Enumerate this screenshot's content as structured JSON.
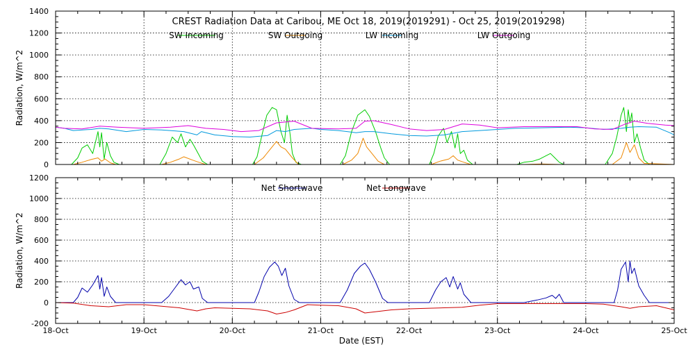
{
  "chart_data": [
    {
      "type": "line",
      "id": "top",
      "title": "CREST Radiation Data at Caribou, ME   Oct 18, 2019(2019291) - Oct 25, 2019(2019298)",
      "xlabel": "",
      "ylabel": "Radiation, W/m^2",
      "ylim": [
        0,
        1400
      ],
      "yticks": [
        0,
        200,
        400,
        600,
        800,
        1000,
        1200,
        1400
      ],
      "xlim": [
        0,
        7
      ],
      "xticks": [
        0,
        1,
        2,
        3,
        4,
        5,
        6,
        7
      ],
      "grid": true,
      "legend_position": "top",
      "series": [
        {
          "name": "SW Incoming",
          "color": "#00cc00",
          "x": [
            0,
            0.18,
            0.25,
            0.3,
            0.36,
            0.42,
            0.48,
            0.5,
            0.52,
            0.55,
            0.58,
            0.62,
            0.66,
            0.72,
            1.0,
            1.18,
            1.25,
            1.32,
            1.38,
            1.42,
            1.47,
            1.52,
            1.56,
            1.62,
            1.66,
            1.72,
            2.0,
            2.23,
            2.28,
            2.33,
            2.39,
            2.45,
            2.5,
            2.55,
            2.59,
            2.62,
            2.65,
            2.68,
            2.72,
            2.78,
            3.0,
            3.22,
            3.28,
            3.35,
            3.42,
            3.5,
            3.55,
            3.62,
            3.68,
            3.72,
            3.78,
            4.0,
            4.23,
            4.28,
            4.33,
            4.39,
            4.43,
            4.48,
            4.52,
            4.55,
            4.58,
            4.62,
            4.66,
            4.72,
            5.0,
            5.22,
            5.3,
            5.4,
            5.48,
            5.55,
            5.6,
            5.65,
            5.7,
            5.75,
            6.0,
            6.22,
            6.3,
            6.35,
            6.4,
            6.43,
            6.46,
            6.48,
            6.5,
            6.52,
            6.55,
            6.58,
            6.62,
            6.66,
            6.72,
            7.0
          ],
          "values": [
            0,
            0,
            60,
            150,
            180,
            100,
            300,
            160,
            290,
            50,
            200,
            80,
            20,
            0,
            0,
            0,
            100,
            250,
            200,
            280,
            160,
            230,
            180,
            90,
            30,
            0,
            0,
            0,
            70,
            250,
            450,
            520,
            500,
            300,
            200,
            450,
            300,
            100,
            20,
            0,
            0,
            0,
            80,
            300,
            450,
            500,
            440,
            300,
            150,
            60,
            0,
            0,
            0,
            100,
            260,
            330,
            200,
            300,
            150,
            280,
            100,
            130,
            40,
            0,
            0,
            0,
            20,
            30,
            50,
            80,
            100,
            60,
            20,
            0,
            0,
            0,
            100,
            250,
            450,
            520,
            300,
            500,
            380,
            470,
            200,
            280,
            150,
            40,
            0,
            0
          ]
        },
        {
          "name": "SW Outgoing",
          "color": "#ee8800",
          "x": [
            0,
            0.2,
            0.3,
            0.4,
            0.48,
            0.52,
            0.56,
            0.62,
            0.68,
            1.0,
            1.2,
            1.3,
            1.4,
            1.45,
            1.55,
            1.62,
            1.7,
            2.0,
            2.25,
            2.35,
            2.45,
            2.5,
            2.55,
            2.6,
            2.68,
            2.75,
            3.0,
            3.25,
            3.35,
            3.42,
            3.48,
            3.52,
            3.58,
            3.65,
            3.72,
            4.0,
            4.25,
            4.35,
            4.45,
            4.5,
            4.55,
            4.62,
            4.7,
            5.0,
            5.3,
            5.5,
            5.7,
            6.0,
            6.3,
            6.4,
            6.46,
            6.5,
            6.55,
            6.6,
            6.66,
            7.0
          ],
          "values": [
            0,
            0,
            20,
            45,
            60,
            30,
            50,
            15,
            0,
            0,
            0,
            20,
            50,
            70,
            40,
            20,
            0,
            0,
            0,
            60,
            160,
            210,
            160,
            140,
            60,
            0,
            0,
            0,
            40,
            100,
            240,
            160,
            100,
            30,
            0,
            0,
            0,
            30,
            50,
            80,
            40,
            20,
            0,
            0,
            0,
            5,
            0,
            0,
            0,
            60,
            200,
            110,
            180,
            60,
            10,
            0
          ]
        },
        {
          "name": "LW Incoming",
          "color": "#0099dd",
          "x": [
            0,
            0.1,
            0.2,
            0.4,
            0.5,
            0.6,
            0.8,
            1.0,
            1.2,
            1.45,
            1.6,
            1.65,
            1.8,
            2.0,
            2.2,
            2.4,
            2.5,
            2.6,
            2.7,
            2.9,
            3.0,
            3.2,
            3.4,
            3.5,
            3.6,
            3.8,
            4.0,
            4.2,
            4.4,
            4.6,
            4.8,
            5.0,
            5.2,
            5.5,
            5.8,
            6.0,
            6.2,
            6.4,
            6.5,
            6.6,
            6.8,
            6.95,
            7.0
          ],
          "values": [
            340,
            330,
            310,
            320,
            330,
            325,
            300,
            320,
            315,
            300,
            270,
            300,
            270,
            255,
            250,
            265,
            310,
            300,
            320,
            330,
            320,
            310,
            290,
            300,
            300,
            280,
            265,
            260,
            270,
            300,
            310,
            320,
            330,
            335,
            340,
            335,
            320,
            330,
            340,
            345,
            340,
            290,
            270
          ]
        },
        {
          "name": "LW Outgoing",
          "color": "#dd00dd",
          "x": [
            0,
            0.1,
            0.3,
            0.5,
            0.7,
            1.0,
            1.3,
            1.5,
            1.7,
            1.9,
            2.1,
            2.3,
            2.5,
            2.7,
            2.9,
            3.2,
            3.4,
            3.5,
            3.6,
            3.8,
            4.0,
            4.2,
            4.4,
            4.6,
            4.8,
            5.0,
            5.3,
            5.6,
            5.9,
            6.1,
            6.3,
            6.45,
            6.55,
            6.7,
            6.9,
            7.0
          ],
          "values": [
            340,
            330,
            325,
            350,
            340,
            330,
            340,
            355,
            330,
            320,
            300,
            310,
            380,
            395,
            330,
            325,
            330,
            395,
            400,
            365,
            325,
            310,
            320,
            370,
            360,
            335,
            345,
            345,
            345,
            325,
            320,
            370,
            395,
            375,
            360,
            355
          ]
        }
      ]
    },
    {
      "type": "line",
      "id": "bottom",
      "title": "",
      "xlabel": "Date (EST)",
      "ylabel": "Radiation, W/m^2",
      "ylim": [
        -200,
        1200
      ],
      "yticks": [
        -200,
        0,
        200,
        400,
        600,
        800,
        1000,
        1200
      ],
      "xlim": [
        0,
        7
      ],
      "xticks": [
        0,
        1,
        2,
        3,
        4,
        5,
        6,
        7
      ],
      "xtick_labels": [
        "18-Oct",
        "19-Oct",
        "20-Oct",
        "21-Oct",
        "22-Oct",
        "23-Oct",
        "24-Oct",
        "25-Oct"
      ],
      "grid": true,
      "legend_position": "top",
      "series": [
        {
          "name": "Net Shortwave",
          "color": "#0000aa",
          "x": [
            0,
            0.2,
            0.25,
            0.3,
            0.36,
            0.42,
            0.48,
            0.5,
            0.52,
            0.55,
            0.58,
            0.62,
            0.68,
            1.0,
            1.2,
            1.28,
            1.35,
            1.42,
            1.47,
            1.52,
            1.56,
            1.62,
            1.66,
            1.72,
            2.0,
            2.25,
            2.3,
            2.36,
            2.42,
            2.48,
            2.52,
            2.56,
            2.6,
            2.64,
            2.7,
            2.76,
            3.0,
            3.22,
            3.3,
            3.38,
            3.45,
            3.5,
            3.55,
            3.62,
            3.7,
            3.76,
            4.0,
            4.23,
            4.3,
            4.36,
            4.42,
            4.46,
            4.5,
            4.55,
            4.58,
            4.62,
            4.7,
            5.0,
            5.3,
            5.45,
            5.55,
            5.62,
            5.66,
            5.7,
            5.75,
            6.0,
            6.32,
            6.36,
            6.4,
            6.45,
            6.48,
            6.5,
            6.52,
            6.55,
            6.6,
            6.66,
            6.72,
            7.0
          ],
          "values": [
            0,
            0,
            50,
            140,
            100,
            170,
            260,
            130,
            240,
            60,
            150,
            60,
            0,
            0,
            0,
            60,
            140,
            220,
            170,
            200,
            130,
            150,
            40,
            0,
            0,
            0,
            100,
            250,
            340,
            390,
            350,
            260,
            330,
            160,
            30,
            0,
            0,
            0,
            120,
            280,
            350,
            380,
            320,
            200,
            40,
            0,
            0,
            0,
            120,
            200,
            240,
            150,
            250,
            130,
            190,
            80,
            0,
            0,
            0,
            25,
            45,
            70,
            40,
            80,
            0,
            0,
            0,
            120,
            320,
            390,
            200,
            400,
            280,
            330,
            160,
            70,
            0,
            0
          ]
        },
        {
          "name": "Net Longwave",
          "color": "#cc0000",
          "x": [
            0,
            0.2,
            0.4,
            0.6,
            0.8,
            1.0,
            1.2,
            1.4,
            1.6,
            1.7,
            1.8,
            2.0,
            2.2,
            2.4,
            2.5,
            2.6,
            2.7,
            2.85,
            3.0,
            3.2,
            3.4,
            3.5,
            3.6,
            3.8,
            4.0,
            4.2,
            4.4,
            4.6,
            4.8,
            5.0,
            5.2,
            5.4,
            5.6,
            5.8,
            6.0,
            6.2,
            6.4,
            6.5,
            6.6,
            6.8,
            6.95,
            7.0
          ],
          "values": [
            0,
            -5,
            -30,
            -40,
            -20,
            -20,
            -35,
            -50,
            -80,
            -60,
            -50,
            -55,
            -60,
            -80,
            -110,
            -95,
            -70,
            -20,
            -25,
            -30,
            -60,
            -100,
            -90,
            -70,
            -60,
            -55,
            -50,
            -45,
            -25,
            -10,
            -10,
            -10,
            -10,
            -10,
            -10,
            -15,
            -40,
            -55,
            -40,
            -30,
            -60,
            -70
          ]
        }
      ]
    }
  ]
}
